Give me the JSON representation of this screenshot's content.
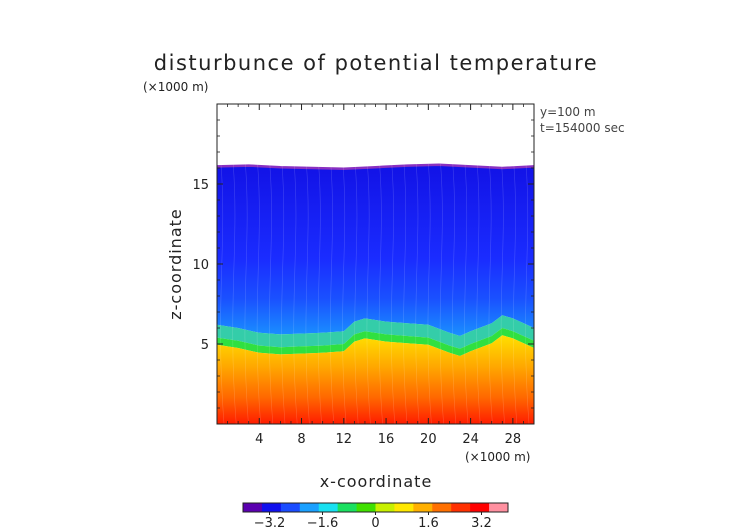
{
  "chart_data": {
    "type": "heatmap",
    "title": "disturbunce of potential temperature",
    "xlabel": "x-coordinate",
    "ylabel": "z-coordinate",
    "x_unit": "(×1000 m)",
    "y_unit": "(×1000 m)",
    "annotations": [
      "y=100 m",
      "t=154000 sec"
    ],
    "xlim": [
      0,
      30
    ],
    "ylim": [
      0,
      20
    ],
    "x_ticks": [
      4,
      8,
      12,
      16,
      20,
      24,
      28
    ],
    "y_ticks": [
      5,
      10,
      15
    ],
    "colorbar": {
      "ticks": [
        -3.2,
        -1.6,
        0,
        1.6,
        3.2
      ],
      "tick_labels": [
        "−3.2",
        "−1.6",
        "0",
        "1.6",
        "3.2"
      ],
      "range": [
        -4.0,
        4.0
      ],
      "colors": [
        "#5b00b0",
        "#1010ee",
        "#1a4cff",
        "#1aa0ff",
        "#18e0f0",
        "#1ae060",
        "#40e000",
        "#c8f000",
        "#ffe800",
        "#ffb000",
        "#ff7000",
        "#ff3000",
        "#ff0000",
        "#ff90a0"
      ]
    },
    "field_description": "upper boundary of field near z=16.1 (no data above); cold anomaly (~-3) between z~5.2 and top; transition (green) near z~4.6-5.6; warm anomaly (~+1.8 to +3.5) below, increasing toward surface",
    "top_profile_x": [
      0,
      3,
      6,
      9,
      12,
      15,
      18,
      21,
      24,
      27,
      30
    ],
    "top_profile_z": [
      16.1,
      16.15,
      16.05,
      16.0,
      15.95,
      16.05,
      16.15,
      16.2,
      16.1,
      16.0,
      16.1
    ],
    "interface_profile_x": [
      0,
      2,
      4,
      6,
      8,
      10,
      12,
      13,
      14,
      16,
      18,
      20,
      22,
      23,
      24,
      26,
      27,
      28,
      30
    ],
    "interface_profile_z": [
      5.4,
      5.2,
      4.9,
      4.8,
      4.85,
      4.9,
      5.0,
      5.6,
      5.8,
      5.6,
      5.5,
      5.4,
      4.9,
      4.7,
      5.0,
      5.5,
      6.0,
      5.8,
      5.2
    ]
  }
}
